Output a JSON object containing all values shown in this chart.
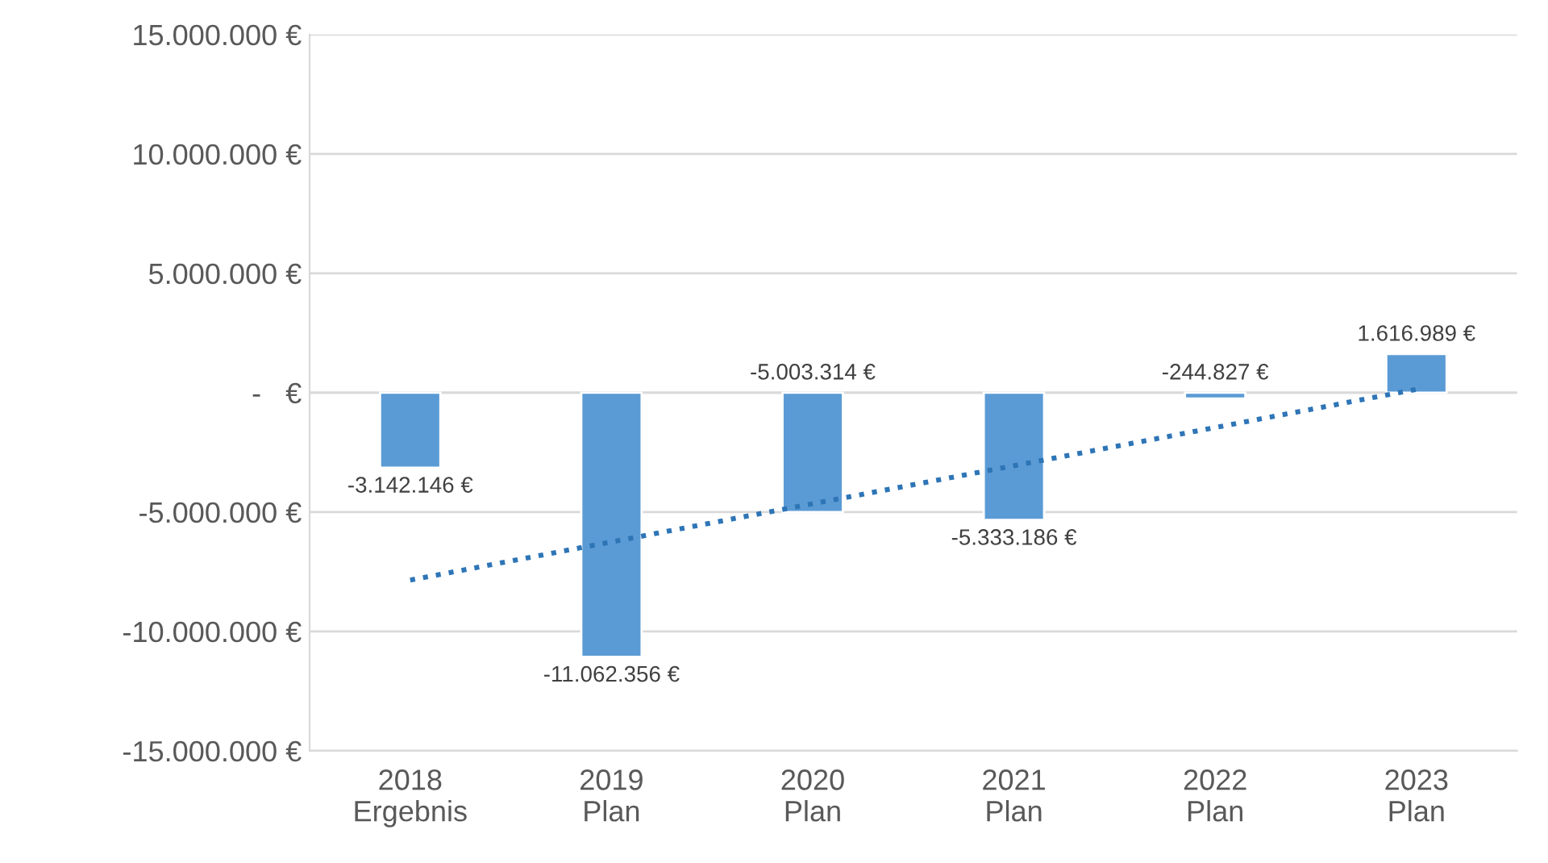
{
  "chart_data": {
    "type": "bar",
    "categories": [
      "2018\nErgebnis",
      "2019\nPlan",
      "2020\nPlan",
      "2021\nPlan",
      "2022\nPlan",
      "2023\nPlan"
    ],
    "series": [
      {
        "color": "#5b9bd5",
        "values": [
          -3142146,
          -11062356,
          -5003314,
          -5333186,
          -244827,
          1616989
        ],
        "value_labels": [
          "-3.142.146 €",
          "-11.062.356 €",
          "-5.003.314 €",
          "-5.333.186 €",
          "-244.827 €",
          "1.616.989 €"
        ]
      },
      {
        "type": "line",
        "color": "#2e75b6",
        "line_style": "dotted",
        "values": [
          -7850000,
          -6250000,
          -4650000,
          -3060000,
          -1460000,
          140000
        ]
      }
    ],
    "ylim": [
      -15000000,
      15000000
    ],
    "yticks": [
      {
        "value": -15000000,
        "label": "-15.000.000 €"
      },
      {
        "value": -10000000,
        "label": "-10.000.000 €"
      },
      {
        "value": -5000000,
        "label": "-5.000.000 €"
      },
      {
        "value": 0,
        "label": "-   €"
      },
      {
        "value": 5000000,
        "label": "5.000.000 €"
      },
      {
        "value": 10000000,
        "label": "10.000.000 €"
      },
      {
        "value": 15000000,
        "label": "15.000.000 €"
      }
    ],
    "grid": "y",
    "legend": false
  }
}
